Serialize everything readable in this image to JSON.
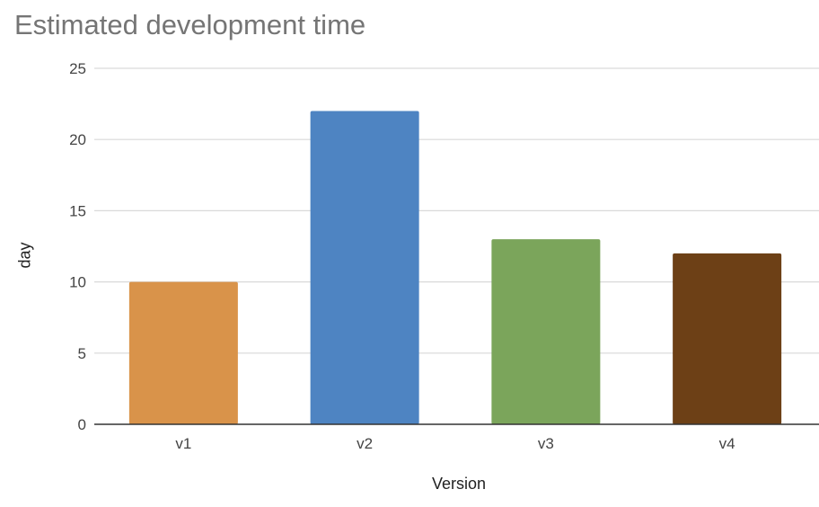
{
  "chart_data": {
    "type": "bar",
    "title": "Estimated development time",
    "xlabel": "Version",
    "ylabel": "day",
    "categories": [
      "v1",
      "v2",
      "v3",
      "v4"
    ],
    "values": [
      10,
      22,
      13,
      12
    ],
    "colors": [
      "#d9934a",
      "#4e84c2",
      "#7ba55b",
      "#6d4016"
    ],
    "ylim": [
      0,
      25
    ],
    "yticks": [
      0,
      5,
      10,
      15,
      20,
      25
    ],
    "grid": true,
    "legend": "none"
  }
}
